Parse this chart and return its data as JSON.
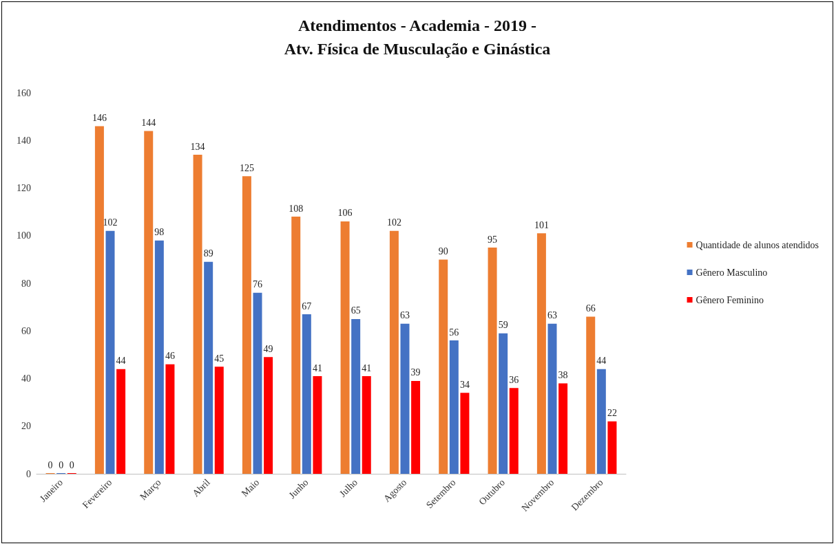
{
  "chart_data": {
    "type": "bar",
    "title": "Atendimentos - Academia - 2019 -\nAtv. Física de Musculação e Ginástica",
    "categories": [
      "Janeiro",
      "Fevereiro",
      "Março",
      "Abril",
      "Maio",
      "Junho",
      "Julho",
      "Agosto",
      "Setembro",
      "Outubro",
      "Novembro",
      "Dezembro"
    ],
    "series": [
      {
        "name": "Quantidade de alunos atendidos",
        "color": "#ed7d31",
        "values": [
          0,
          146,
          144,
          134,
          125,
          108,
          106,
          102,
          90,
          95,
          101,
          66
        ]
      },
      {
        "name": "Gênero Masculino",
        "color": "#4472c4",
        "values": [
          0,
          102,
          98,
          89,
          76,
          67,
          65,
          63,
          56,
          59,
          63,
          44
        ]
      },
      {
        "name": "Gênero Feminino",
        "color": "#ff0000",
        "values": [
          0,
          44,
          46,
          45,
          49,
          41,
          41,
          39,
          34,
          36,
          38,
          22
        ]
      }
    ],
    "ylim": [
      0,
      160
    ],
    "yticks": [
      0,
      20,
      40,
      60,
      80,
      100,
      120,
      140,
      160
    ],
    "grid": false,
    "legend": "right",
    "data_labels": true
  }
}
